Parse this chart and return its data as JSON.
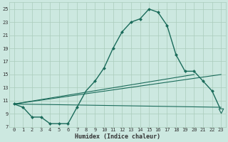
{
  "xlabel": "Humidex (Indice chaleur)",
  "bg_color": "#cce8e0",
  "line_color": "#1a6b5a",
  "grid_color": "#aaccbb",
  "xlim": [
    -0.5,
    23.5
  ],
  "ylim": [
    7,
    26
  ],
  "yticks": [
    7,
    9,
    11,
    13,
    15,
    17,
    19,
    21,
    23,
    25
  ],
  "xticks": [
    0,
    1,
    2,
    3,
    4,
    5,
    6,
    7,
    8,
    9,
    10,
    11,
    12,
    13,
    14,
    15,
    16,
    17,
    18,
    19,
    20,
    21,
    22,
    23
  ],
  "curve1_x": [
    0,
    1,
    2,
    3,
    4,
    5,
    6,
    7,
    8,
    9,
    10,
    11,
    12,
    13,
    14,
    15,
    16,
    17,
    18,
    19,
    20,
    21,
    22,
    23
  ],
  "curve1_y": [
    10.5,
    10.0,
    8.5,
    8.5,
    7.5,
    7.5,
    7.5,
    10.0,
    12.5,
    14.0,
    16.0,
    19.0,
    21.5,
    23.0,
    23.5,
    25.0,
    24.5,
    22.5,
    18.0,
    15.5,
    15.5,
    14.0,
    12.5,
    9.5
  ],
  "line2_x": [
    0,
    23
  ],
  "line2_y": [
    10.5,
    15.0
  ],
  "line3_x": [
    0,
    20
  ],
  "line3_y": [
    10.5,
    15.0
  ],
  "line4_x": [
    0,
    23
  ],
  "line4_y": [
    10.5,
    10.0
  ],
  "marker_x": [
    0,
    1,
    2,
    3,
    4,
    5,
    6,
    7,
    9,
    10,
    11,
    12,
    13,
    14,
    15,
    16,
    17,
    18,
    19,
    20,
    21,
    22
  ],
  "marker_y": [
    10.5,
    10.0,
    8.5,
    8.5,
    7.5,
    7.5,
    7.5,
    10.0,
    14.0,
    16.0,
    19.0,
    21.5,
    23.0,
    23.5,
    25.0,
    24.5,
    22.5,
    18.0,
    15.5,
    15.5,
    14.0,
    12.5
  ],
  "end_x": 23,
  "end_y": 9.5
}
